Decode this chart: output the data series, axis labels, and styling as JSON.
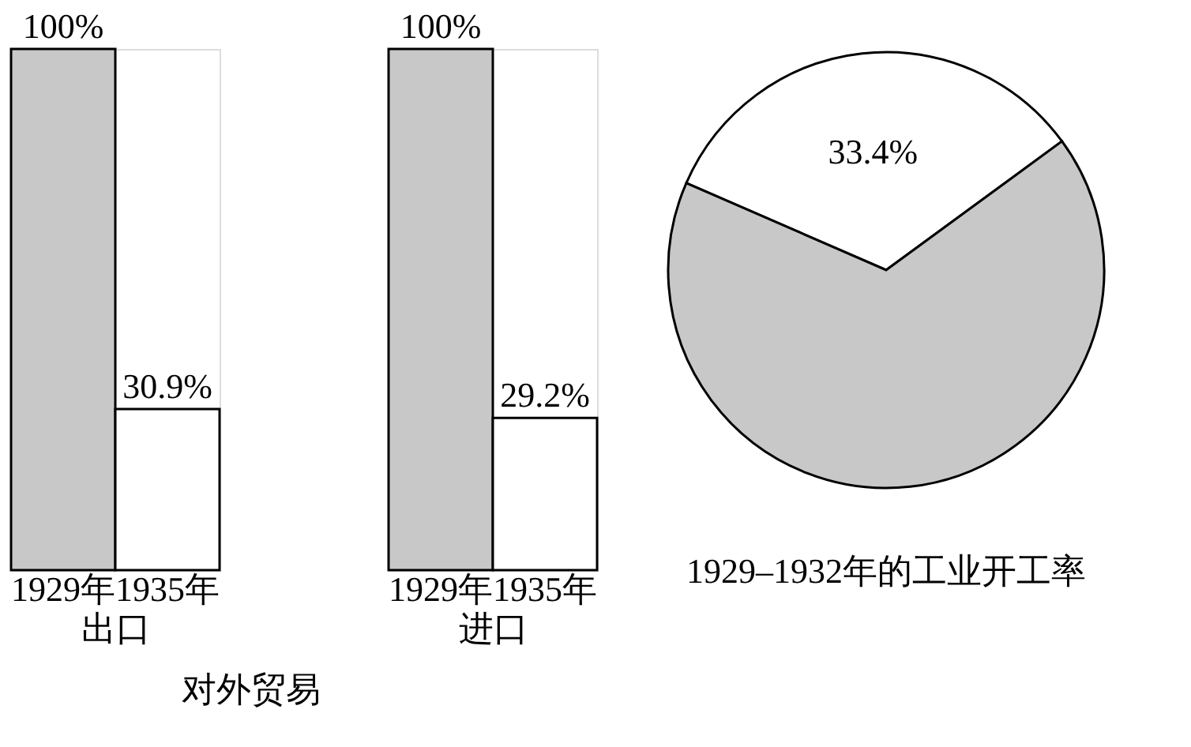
{
  "chart_data": [
    {
      "type": "bar",
      "categories": [
        "1929年",
        "1935年"
      ],
      "values": [
        100,
        30.9
      ],
      "colors": [
        "#c8c8c8",
        "#ffffff"
      ],
      "value_labels": [
        "100%",
        "30.9%"
      ],
      "xlabel": "出口",
      "annotations": [
        "对外贸易"
      ],
      "tick_labels": "x",
      "grid": false
    },
    {
      "type": "bar",
      "categories": [
        "1929年",
        "1935年"
      ],
      "values": [
        100,
        29.2
      ],
      "colors": [
        "#c8c8c8",
        "#ffffff"
      ],
      "value_labels": [
        "100%",
        "29.2%"
      ],
      "xlabel": "进口",
      "tick_labels": "x",
      "grid": false
    },
    {
      "type": "pie",
      "title": "1929–1932年的工业开工率",
      "categories": [
        null,
        null
      ],
      "values": [
        33.4,
        66.6
      ],
      "colors": [
        "#ffffff",
        "#c8c8c8"
      ],
      "value_labels": [
        "33.4%",
        null
      ],
      "legend": false
    }
  ]
}
